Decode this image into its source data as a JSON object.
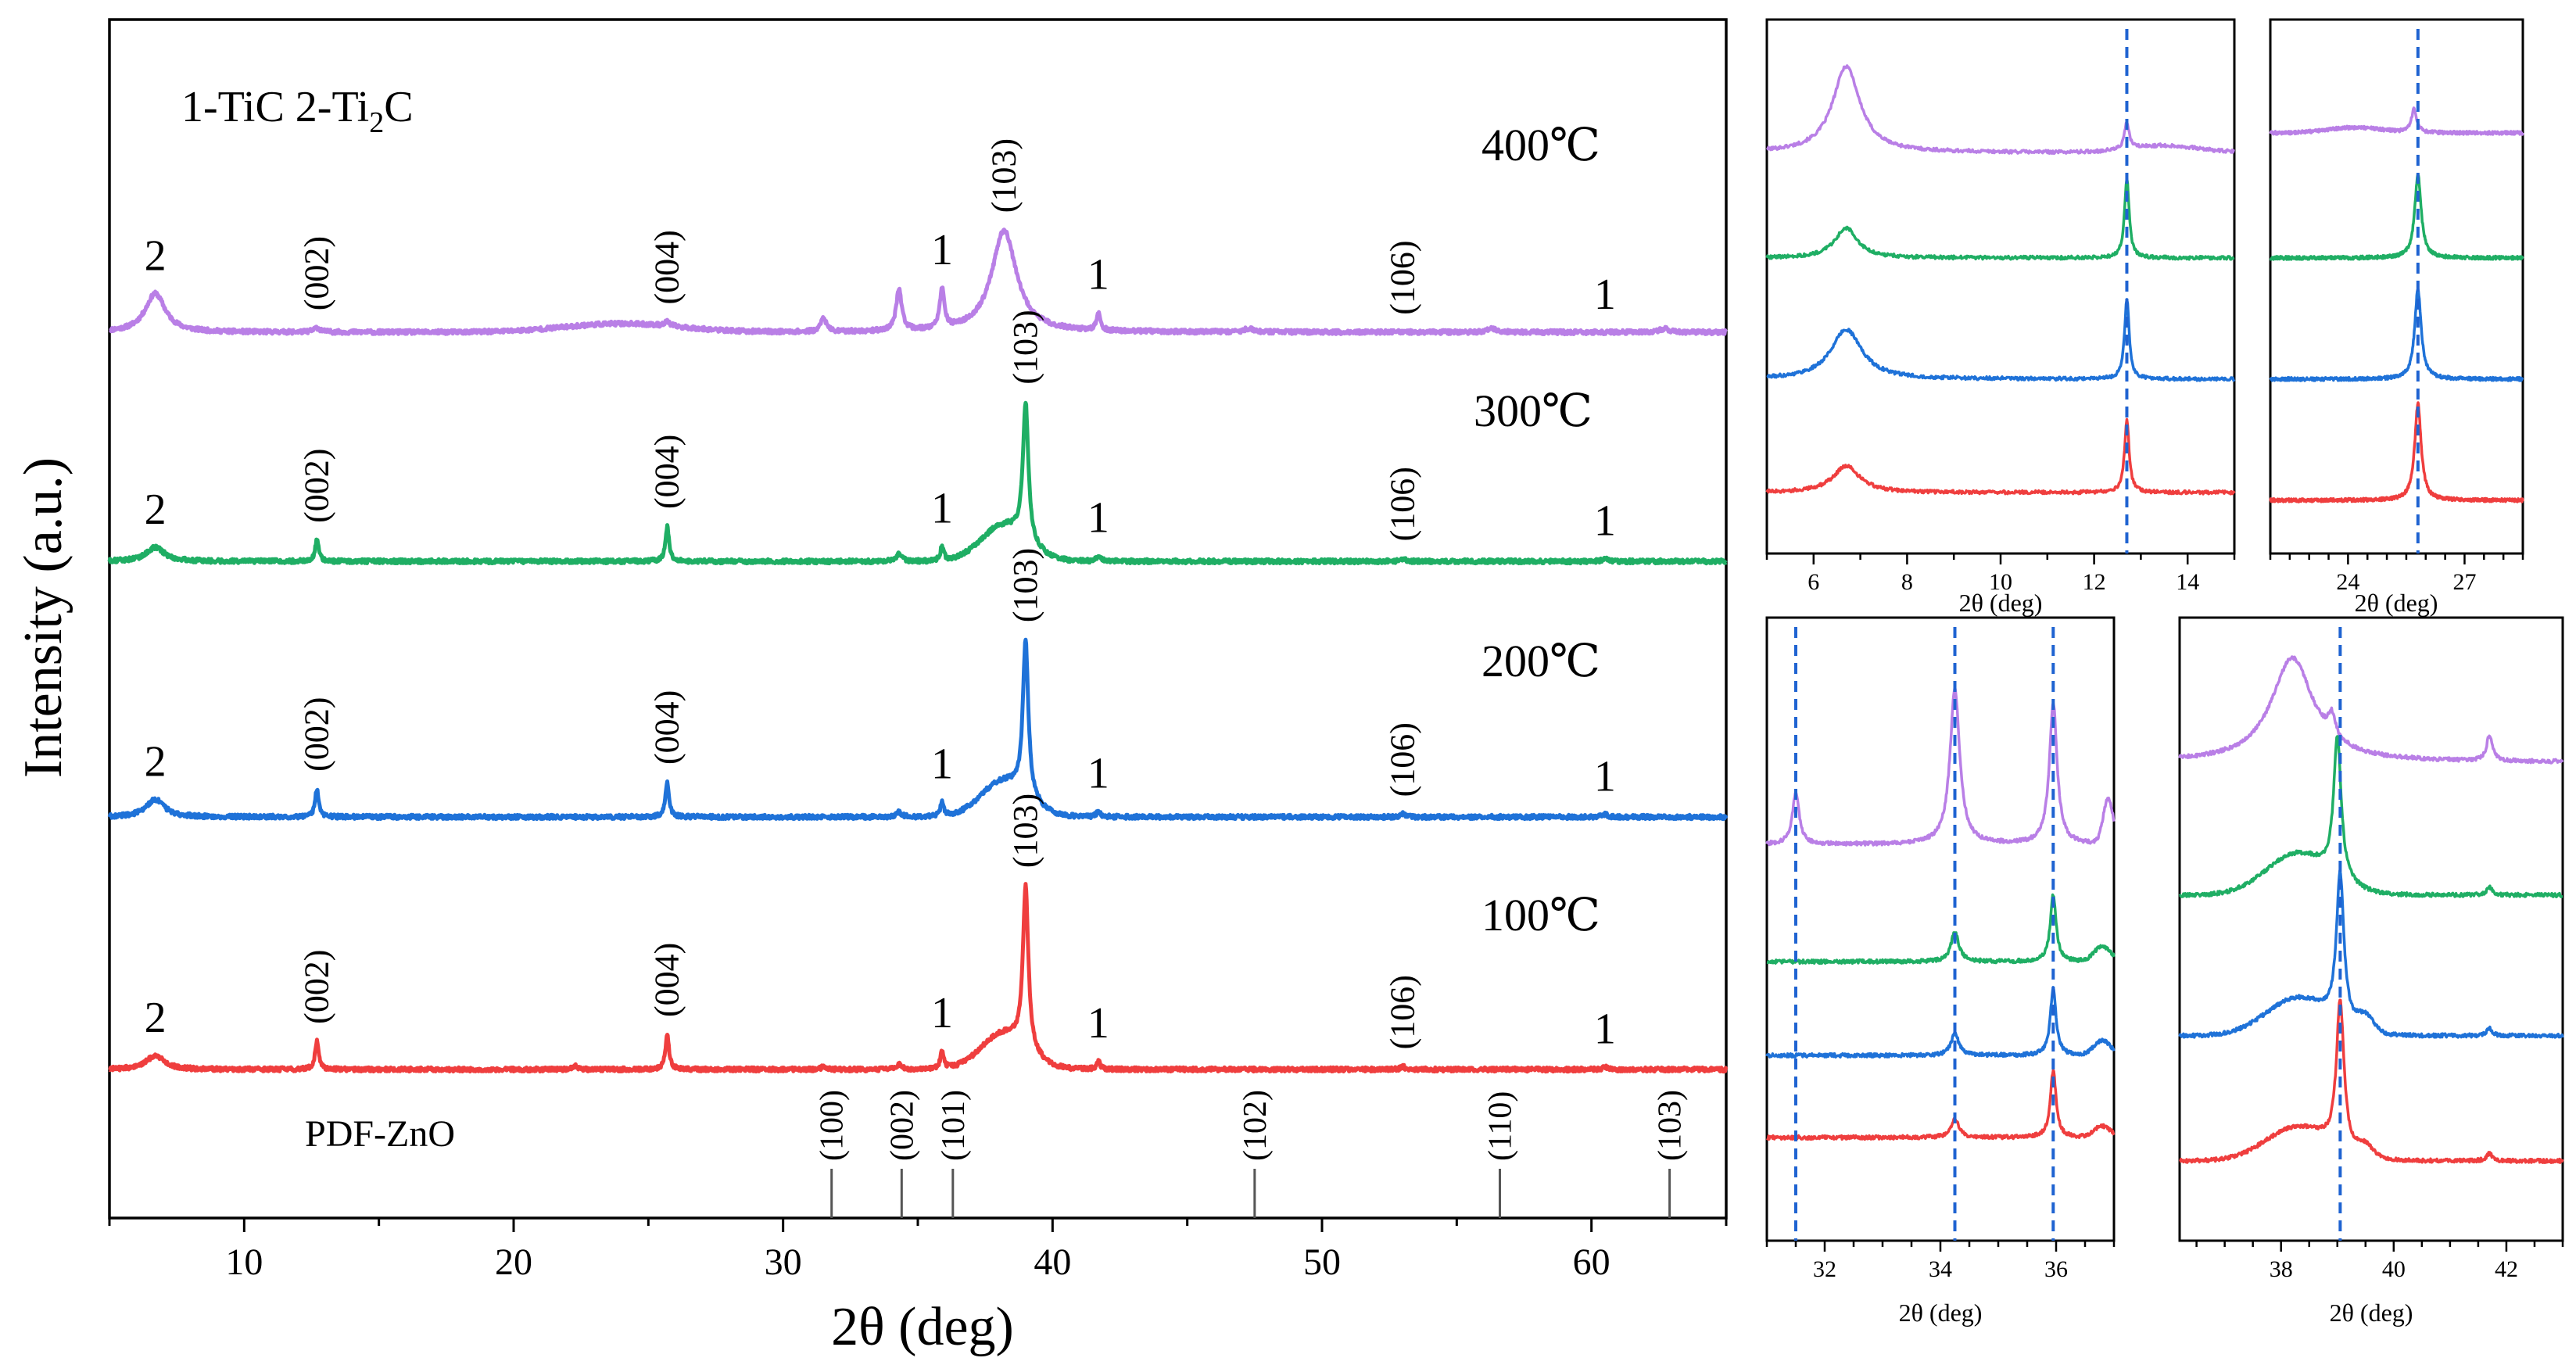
{
  "colors": {
    "c400": "#b97fe6",
    "c300": "#1fae64",
    "c200": "#1f72d8",
    "c100": "#ef3e3e",
    "ref": "#1f63d1",
    "axis": "#000000"
  },
  "chart_data": [
    {
      "id": "main",
      "type": "line",
      "title": "",
      "xlabel": "2θ (deg)",
      "ylabel": "Intensity (a.u.)",
      "xlim": [
        5,
        65
      ],
      "x_ticks": [
        10,
        20,
        30,
        40,
        50,
        60
      ],
      "legend_text": "1-TiC  2-Ti",
      "legend_sub": "2",
      "legend_tail": "C",
      "series": [
        {
          "name": "400℃",
          "color_key": "c400",
          "amplitude": 1.0,
          "peaks": [
            [
              6.7,
              0.55,
              0.45
            ],
            [
              12.7,
              0.06,
              0.15
            ],
            [
              25.7,
              0.06,
              0.12
            ],
            [
              31.5,
              0.2,
              0.12
            ],
            [
              34.3,
              0.6,
              0.12
            ],
            [
              35.9,
              0.55,
              0.1
            ],
            [
              38.2,
              1.45,
              0.55
            ],
            [
              41.7,
              0.25,
              0.08
            ],
            [
              47.3,
              0.05,
              0.2
            ],
            [
              56.3,
              0.05,
              0.2
            ],
            [
              62.7,
              0.05,
              0.2
            ]
          ],
          "humps": [
            [
              24,
              0.12,
              3.0
            ]
          ]
        },
        {
          "name": "300℃",
          "color_key": "c300",
          "amplitude": 1.0,
          "peaks": [
            [
              6.7,
              0.2,
              0.4
            ],
            [
              12.7,
              0.3,
              0.08
            ],
            [
              25.7,
              0.5,
              0.08
            ],
            [
              34.3,
              0.1,
              0.12
            ],
            [
              35.9,
              0.2,
              0.08
            ],
            [
              39.0,
              1.95,
              0.12
            ],
            [
              41.7,
              0.08,
              0.08
            ],
            [
              53.0,
              0.04,
              0.1
            ],
            [
              60.5,
              0.04,
              0.1
            ]
          ],
          "humps": [
            [
              38.2,
              0.5,
              1.2
            ]
          ]
        },
        {
          "name": "200℃",
          "color_key": "c200",
          "amplitude": 1.0,
          "peaks": [
            [
              6.7,
              0.25,
              0.4
            ],
            [
              12.7,
              0.4,
              0.08
            ],
            [
              25.7,
              0.5,
              0.08
            ],
            [
              34.3,
              0.07,
              0.12
            ],
            [
              35.9,
              0.2,
              0.08
            ],
            [
              39.0,
              2.2,
              0.12
            ],
            [
              41.7,
              0.08,
              0.08
            ],
            [
              53.0,
              0.04,
              0.1
            ],
            [
              60.5,
              0.04,
              0.1
            ]
          ],
          "humps": [
            [
              38.2,
              0.5,
              1.2
            ]
          ]
        },
        {
          "name": "100℃",
          "color_key": "c100",
          "amplitude": 1.0,
          "peaks": [
            [
              6.7,
              0.2,
              0.4
            ],
            [
              12.7,
              0.4,
              0.08
            ],
            [
              22.3,
              0.05,
              0.1
            ],
            [
              25.7,
              0.5,
              0.08
            ],
            [
              31.5,
              0.04,
              0.1
            ],
            [
              34.3,
              0.07,
              0.12
            ],
            [
              35.9,
              0.25,
              0.08
            ],
            [
              39.0,
              2.3,
              0.12
            ],
            [
              41.7,
              0.12,
              0.08
            ],
            [
              53.0,
              0.04,
              0.1
            ],
            [
              60.5,
              0.04,
              0.1
            ]
          ],
          "humps": [
            [
              38.2,
              0.5,
              1.2
            ]
          ]
        }
      ],
      "reference": {
        "name": "PDF-ZnO",
        "lines": [
          {
            "x": 31.8,
            "label": "(100)"
          },
          {
            "x": 34.4,
            "label": "(002)"
          },
          {
            "x": 36.3,
            "label": "(101)"
          },
          {
            "x": 47.5,
            "label": "(102)"
          },
          {
            "x": 56.6,
            "label": "(110)"
          },
          {
            "x": 62.9,
            "label": "(103)"
          }
        ]
      },
      "peak_labels": [
        {
          "series": 0,
          "items": [
            [
              "2",
              6.7
            ],
            [
              "(002)",
              12.7
            ],
            [
              "(004)",
              25.7
            ],
            [
              "1",
              35.9
            ],
            [
              "(103)",
              38.2
            ],
            [
              "1",
              41.7
            ],
            [
              "(106)",
              53.0
            ],
            [
              "1",
              60.5
            ]
          ]
        },
        {
          "series": 1,
          "items": [
            [
              "2",
              6.7
            ],
            [
              "(002)",
              12.7
            ],
            [
              "(004)",
              25.7
            ],
            [
              "1",
              35.9
            ],
            [
              "(103)",
              39.0
            ],
            [
              "1",
              41.7
            ],
            [
              "(106)",
              53.0
            ],
            [
              "1",
              60.5
            ]
          ]
        },
        {
          "series": 2,
          "items": [
            [
              "2",
              6.7
            ],
            [
              "(002)",
              12.7
            ],
            [
              "(004)",
              25.7
            ],
            [
              "1",
              35.9
            ],
            [
              "(103)",
              39.0
            ],
            [
              "1",
              41.7
            ],
            [
              "(106)",
              53.0
            ],
            [
              "1",
              60.5
            ]
          ]
        },
        {
          "series": 3,
          "items": [
            [
              "2",
              6.7
            ],
            [
              "(002)",
              12.7
            ],
            [
              "(004)",
              25.7
            ],
            [
              "1",
              35.9
            ],
            [
              "(103)",
              39.0
            ],
            [
              "1",
              41.7
            ],
            [
              "(106)",
              53.0
            ],
            [
              "1",
              60.5
            ]
          ]
        }
      ]
    },
    {
      "id": "inset_a",
      "type": "line",
      "xlabel": "2θ (deg)",
      "xlim": [
        5,
        15
      ],
      "x_ticks": [
        6,
        8,
        10,
        12,
        14
      ],
      "ref_lines": [
        12.7
      ],
      "series": [
        {
          "color_key": "c400",
          "peaks": [
            [
              6.7,
              1.3,
              0.35
            ],
            [
              12.7,
              0.4,
              0.06
            ]
          ],
          "humps": [
            [
              13.5,
              0.1,
              1.0
            ]
          ]
        },
        {
          "color_key": "c300",
          "peaks": [
            [
              6.7,
              0.45,
              0.3
            ],
            [
              12.7,
              1.2,
              0.06
            ]
          ]
        },
        {
          "color_key": "c200",
          "peaks": [
            [
              6.7,
              0.75,
              0.4
            ],
            [
              12.7,
              1.2,
              0.06
            ]
          ]
        },
        {
          "color_key": "c100",
          "peaks": [
            [
              6.7,
              0.4,
              0.35
            ],
            [
              12.7,
              1.1,
              0.06
            ]
          ]
        }
      ]
    },
    {
      "id": "inset_b",
      "type": "line",
      "xlabel": "2θ (deg)",
      "xlim": [
        22,
        28.5
      ],
      "x_ticks": [
        24,
        27
      ],
      "ref_lines": [
        25.8
      ],
      "series": [
        {
          "color_key": "c400",
          "peaks": [
            [
              25.7,
              0.35,
              0.08
            ]
          ],
          "humps": [
            [
              24.2,
              0.08,
              1.0
            ]
          ]
        },
        {
          "color_key": "c300",
          "peaks": [
            [
              25.8,
              1.25,
              0.1
            ]
          ]
        },
        {
          "color_key": "c200",
          "peaks": [
            [
              25.8,
              1.35,
              0.1
            ]
          ]
        },
        {
          "color_key": "c100",
          "peaks": [
            [
              25.8,
              1.45,
              0.1
            ]
          ]
        }
      ]
    },
    {
      "id": "inset_c",
      "type": "line",
      "xlabel": "2θ (deg)",
      "xlim": [
        31,
        37
      ],
      "x_ticks": [
        32,
        34,
        36
      ],
      "ref_lines": [
        31.5,
        34.25,
        35.95
      ],
      "series": [
        {
          "color_key": "c400",
          "peaks": [
            [
              31.5,
              0.7,
              0.07
            ],
            [
              34.25,
              2.1,
              0.1
            ],
            [
              35.95,
              1.9,
              0.08
            ]
          ],
          "humps": [
            [
              36.9,
              0.6,
              0.12
            ]
          ]
        },
        {
          "color_key": "c300",
          "peaks": [
            [
              34.25,
              0.4,
              0.08
            ],
            [
              35.95,
              0.9,
              0.06
            ]
          ],
          "humps": [
            [
              36.8,
              0.2,
              0.2
            ]
          ]
        },
        {
          "color_key": "c200",
          "peaks": [
            [
              34.25,
              0.3,
              0.08
            ],
            [
              35.95,
              0.9,
              0.06
            ]
          ],
          "humps": [
            [
              36.8,
              0.2,
              0.2
            ]
          ]
        },
        {
          "color_key": "c100",
          "peaks": [
            [
              34.25,
              0.25,
              0.08
            ],
            [
              35.95,
              0.9,
              0.06
            ]
          ],
          "humps": [
            [
              36.8,
              0.15,
              0.2
            ]
          ]
        }
      ]
    },
    {
      "id": "inset_d",
      "type": "line",
      "xlabel": "2θ (deg)",
      "xlim": [
        36.2,
        43
      ],
      "x_ticks": [
        38,
        40,
        42
      ],
      "ref_lines": [
        39.05
      ],
      "series": [
        {
          "color_key": "c400",
          "peaks": [
            [
              38.2,
              1.4,
              0.45
            ],
            [
              38.9,
              0.3,
              0.08
            ],
            [
              41.7,
              0.35,
              0.06
            ]
          ]
        },
        {
          "color_key": "c300",
          "peaks": [
            [
              39.0,
              1.9,
              0.08
            ],
            [
              41.7,
              0.1,
              0.06
            ]
          ],
          "humps": [
            [
              38.3,
              0.55,
              0.8
            ]
          ]
        },
        {
          "color_key": "c200",
          "peaks": [
            [
              39.05,
              2.0,
              0.08
            ],
            [
              41.7,
              0.1,
              0.06
            ]
          ],
          "humps": [
            [
              38.3,
              0.5,
              0.8
            ],
            [
              39.5,
              0.2,
              0.2
            ]
          ]
        },
        {
          "color_key": "c100",
          "peaks": [
            [
              39.05,
              2.0,
              0.08
            ],
            [
              41.7,
              0.1,
              0.06
            ]
          ],
          "humps": [
            [
              38.3,
              0.45,
              0.8
            ],
            [
              39.5,
              0.15,
              0.2
            ]
          ]
        }
      ]
    }
  ]
}
